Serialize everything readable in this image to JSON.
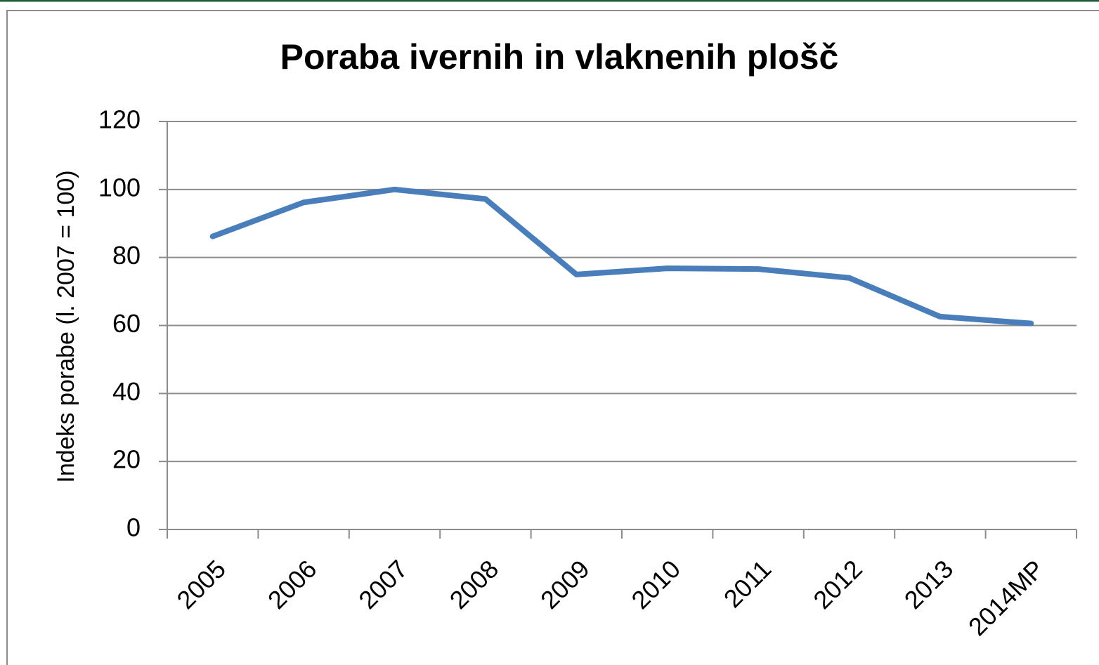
{
  "chart_data": {
    "type": "line",
    "title": "Poraba ivernih in vlaknenih plošč",
    "y_label": "Indeks porabe (l. 2007 = 100)",
    "categories": [
      "2005",
      "2006",
      "2007",
      "2008",
      "2009",
      "2010",
      "2011",
      "2012",
      "2013",
      "2014MP"
    ],
    "series": [
      {
        "name": "Indeks porabe",
        "color": "#4a7ebb",
        "values": [
          86.2,
          96.2,
          100,
          97.2,
          75,
          76.8,
          76.6,
          74,
          62.6,
          60.6
        ]
      }
    ],
    "ylim": [
      0,
      120
    ],
    "yticks": [
      0,
      20,
      40,
      60,
      80,
      100,
      120
    ],
    "grid": true
  }
}
